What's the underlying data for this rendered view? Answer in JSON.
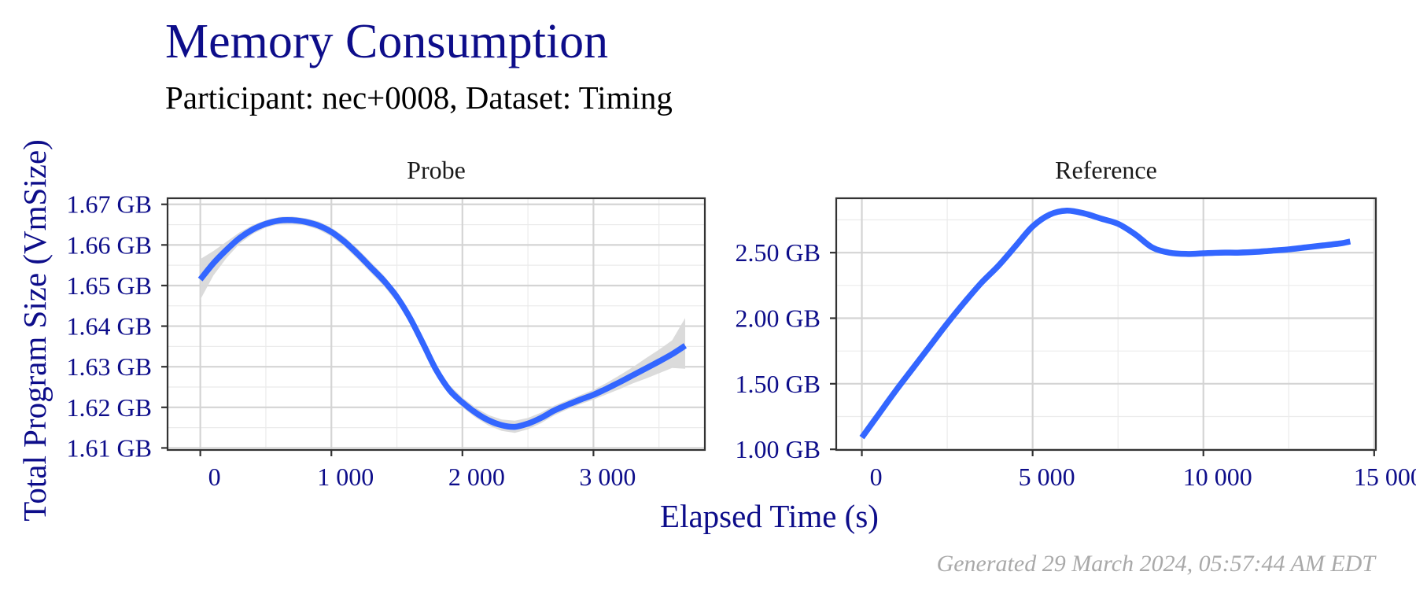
{
  "figure": {
    "title": "Memory Consumption",
    "subtitle": "Participant: nec+0008, Dataset: Timing",
    "caption": "Generated 29 March 2024, 05:57:44 AM EDT"
  },
  "chart_data": [
    {
      "type": "line",
      "panel": "Probe",
      "xlabel": "Elapsed Time (s)",
      "ylabel": "Total Program Size (VmSize)",
      "xlim": [
        -250,
        3850
      ],
      "ylim": [
        1.6095,
        1.6715
      ],
      "xticks": [
        0,
        1000,
        2000,
        3000
      ],
      "xtick_labels": [
        "0",
        "1 000",
        "2 000",
        "3 000"
      ],
      "yticks": [
        1.61,
        1.62,
        1.63,
        1.64,
        1.65,
        1.66,
        1.67
      ],
      "ytick_labels": [
        "1.61 GB",
        "1.62 GB",
        "1.63 GB",
        "1.64 GB",
        "1.65 GB",
        "1.66 GB",
        "1.67 GB"
      ],
      "grid": true,
      "colors": {
        "line": "#3366ff",
        "band": "#d9d9d9",
        "axis_text": "#0d0d8a"
      },
      "series": [
        {
          "x": [
            0,
            100,
            200,
            300,
            400,
            500,
            600,
            700,
            800,
            900,
            1000,
            1100,
            1200,
            1300,
            1400,
            1500,
            1600,
            1700,
            1800,
            1900,
            2000,
            2100,
            2200,
            2300,
            2400,
            2500,
            2600,
            2700,
            2800,
            2900,
            3000,
            3100,
            3200,
            3300,
            3400,
            3500,
            3600,
            3700
          ],
          "y": [
            1.6515,
            1.6555,
            1.6588,
            1.6617,
            1.6638,
            1.6652,
            1.666,
            1.6661,
            1.6657,
            1.6648,
            1.6632,
            1.6608,
            1.6578,
            1.6545,
            1.6512,
            1.6472,
            1.642,
            1.6357,
            1.6292,
            1.6243,
            1.6212,
            1.6187,
            1.6168,
            1.6156,
            1.6152,
            1.616,
            1.6174,
            1.6192,
            1.6206,
            1.6219,
            1.6231,
            1.6246,
            1.6262,
            1.6279,
            1.6296,
            1.6313,
            1.6331,
            1.6352
          ],
          "ci_lower": [
            1.6465,
            1.6525,
            1.6568,
            1.6603,
            1.6627,
            1.6643,
            1.6651,
            1.6652,
            1.6648,
            1.6638,
            1.6621,
            1.6596,
            1.6565,
            1.6532,
            1.6499,
            1.6459,
            1.6407,
            1.6344,
            1.628,
            1.6231,
            1.62,
            1.6175,
            1.6155,
            1.6142,
            1.6137,
            1.6146,
            1.6161,
            1.618,
            1.6195,
            1.6208,
            1.6219,
            1.6232,
            1.6245,
            1.6259,
            1.6271,
            1.6284,
            1.6297,
            1.6295
          ],
          "ci_upper": [
            1.6565,
            1.6585,
            1.6608,
            1.6631,
            1.6649,
            1.6661,
            1.6669,
            1.667,
            1.6666,
            1.6658,
            1.6643,
            1.662,
            1.6591,
            1.6558,
            1.6525,
            1.6485,
            1.6433,
            1.637,
            1.6304,
            1.6255,
            1.6224,
            1.6199,
            1.6181,
            1.617,
            1.6167,
            1.6174,
            1.6187,
            1.6204,
            1.6217,
            1.623,
            1.6243,
            1.626,
            1.6279,
            1.6299,
            1.6321,
            1.6342,
            1.6365,
            1.642
          ]
        }
      ]
    },
    {
      "type": "line",
      "panel": "Reference",
      "xlabel": "Elapsed Time (s)",
      "ylabel": "Total Program Size (VmSize)",
      "xlim": [
        -750,
        15050
      ],
      "ylim": [
        0.995,
        2.915
      ],
      "xticks": [
        0,
        5000,
        10000,
        15000
      ],
      "xtick_labels": [
        "0",
        "5 000",
        "10 000",
        "15 000"
      ],
      "yticks": [
        1.0,
        1.5,
        2.0,
        2.5
      ],
      "ytick_labels": [
        "1.00 GB",
        "1.50 GB",
        "2.00 GB",
        "2.50 GB"
      ],
      "grid": true,
      "colors": {
        "line": "#3366ff",
        "axis_text": "#0d0d8a"
      },
      "series": [
        {
          "x": [
            0,
            500,
            1000,
            1500,
            2000,
            2500,
            3000,
            3500,
            4000,
            4500,
            5000,
            5500,
            6000,
            6500,
            7000,
            7500,
            8000,
            8500,
            9000,
            9500,
            10000,
            10500,
            11000,
            11500,
            12000,
            12500,
            13000,
            13500,
            14000,
            14300
          ],
          "y": [
            1.09,
            1.27,
            1.45,
            1.62,
            1.79,
            1.96,
            2.12,
            2.27,
            2.4,
            2.55,
            2.7,
            2.79,
            2.82,
            2.8,
            2.76,
            2.72,
            2.64,
            2.54,
            2.5,
            2.49,
            2.495,
            2.5,
            2.5,
            2.505,
            2.515,
            2.525,
            2.54,
            2.555,
            2.57,
            2.585
          ]
        }
      ]
    }
  ]
}
